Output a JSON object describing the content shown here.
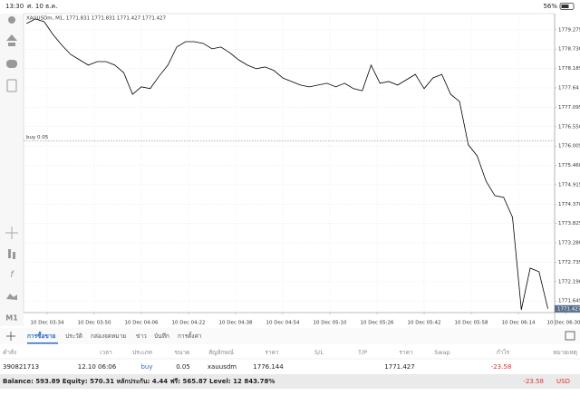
{
  "status_bar": {
    "time": "13:30",
    "date": "ศ. 10 ธ.ค.",
    "battery": "56%"
  },
  "toolbar": {
    "timeframe": "M1"
  },
  "chart_data": {
    "type": "line",
    "title": "XAUUSDm, M1, 1771.831 1771.831 1771.427 1771.427",
    "x": [
      207,
      210,
      213,
      216,
      219,
      222,
      225,
      228,
      231,
      234,
      237,
      240,
      243,
      246,
      249,
      252,
      255,
      258,
      261,
      264,
      267,
      270,
      273,
      276,
      279,
      282,
      285,
      288,
      291,
      294,
      297,
      300,
      303,
      306,
      309,
      312,
      315,
      318,
      321,
      324,
      327,
      330,
      333,
      336,
      339,
      342,
      345,
      348,
      351,
      354,
      357,
      360,
      363,
      366,
      369,
      372,
      375,
      378,
      381,
      384
    ],
    "series": [
      {
        "color": "#000000",
        "values": [
          1779.45,
          1779.58,
          1779.5,
          1779.14,
          1778.84,
          1778.58,
          1778.43,
          1778.28,
          1778.38,
          1778.38,
          1778.28,
          1778.07,
          1777.46,
          1777.67,
          1777.62,
          1777.97,
          1778.28,
          1778.79,
          1778.94,
          1778.94,
          1778.89,
          1778.74,
          1778.79,
          1778.63,
          1778.43,
          1778.28,
          1778.18,
          1778.23,
          1778.13,
          1777.92,
          1777.82,
          1777.72,
          1777.67,
          1777.72,
          1777.77,
          1777.67,
          1777.77,
          1777.62,
          1777.56,
          1778.28,
          1777.77,
          1777.82,
          1777.72,
          1777.87,
          1778.02,
          1777.62,
          1777.92,
          1778.02,
          1777.46,
          1777.26,
          1776.04,
          1775.73,
          1775.02,
          1774.61,
          1774.56,
          1774.0,
          1771.4,
          1772.57,
          1772.47,
          1771.43
        ]
      }
    ],
    "xlim": [
      206,
      386.3
    ],
    "xticks": [
      {
        "value": 214,
        "label": "10 Dec 03:34"
      },
      {
        "value": 230,
        "label": "10 Dec 03:50"
      },
      {
        "value": 246,
        "label": "10 Dec 04:06"
      },
      {
        "value": 262,
        "label": "10 Dec 04:22"
      },
      {
        "value": 278,
        "label": "10 Dec 04:38"
      },
      {
        "value": 294,
        "label": "10 Dec 04:54"
      },
      {
        "value": 310,
        "label": "10 Dec 05:10"
      },
      {
        "value": 326,
        "label": "10 Dec 05:26"
      },
      {
        "value": 342,
        "label": "10 Dec 05:42"
      },
      {
        "value": 358,
        "label": "10 Dec 05:58"
      },
      {
        "value": 374,
        "label": "10 Dec 06:14"
      },
      {
        "value": 390,
        "label": "10 Dec 06:30"
      }
    ],
    "ylim": [
      1771.32,
      1779.73
    ],
    "yticks": [
      1779.275,
      {
        "value": 1778.73,
        "label": "1778.730"
      },
      1778.185,
      1777.64,
      1777.095,
      {
        "value": 1776.55,
        "label": "1776.550"
      },
      1776.005,
      {
        "value": 1775.46,
        "label": "1775.460"
      },
      1774.915,
      {
        "value": 1774.37,
        "label": "1774.370"
      },
      1773.825,
      {
        "value": 1773.28,
        "label": "1773.280"
      },
      1772.735,
      {
        "value": 1772.19,
        "label": "1772.190"
      },
      1771.645
    ],
    "grid": true,
    "order_line": {
      "label": "buy 0.05",
      "value": 1776.144
    },
    "last_price": 1771.427
  },
  "tabs": [
    "การซื้อขาย",
    "ประวัติ",
    "กล่องจดหมาย",
    "ข่าว",
    "บันทึก",
    "การตั้งค่า"
  ],
  "trade_table": {
    "headers": [
      "คำสั่ง",
      "เวลา",
      "ประเภท",
      "ขนาด",
      "สัญลักษณ์",
      "ราคา",
      "S/L",
      "T/P",
      "ราคา",
      "Swap",
      "กำไร",
      "หมายเหตุ"
    ],
    "rows": [
      {
        "order": "390821713",
        "time": "12.10 06:06",
        "type": "buy",
        "volume": "0.05",
        "symbol": "xauusdm",
        "open_price": "1776.144",
        "price": "1771.427",
        "profit": "-23.58"
      }
    ]
  },
  "footer": {
    "summary": "Balance: 593.89 Equity: 570.31 หลักประกัน: 4.44 ฟรี: 565.87 Level: 12 843.78%",
    "total_profit": "-23.58",
    "currency": "USD"
  }
}
